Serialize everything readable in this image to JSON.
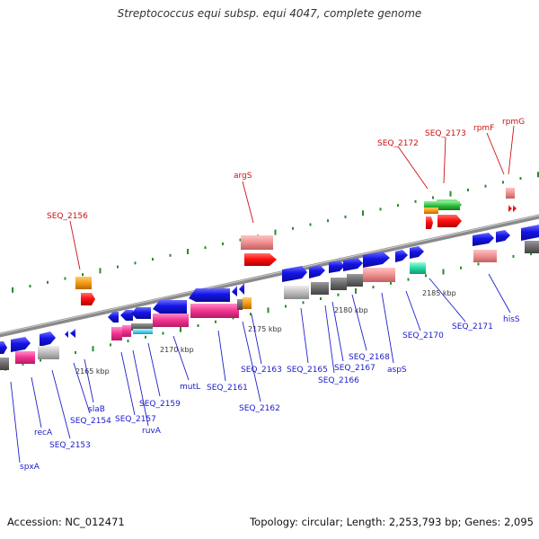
{
  "title": "Streptococcus equi subsp. equi 4047, complete genome",
  "footer": {
    "accession": "Accession: NC_012471",
    "summary": "Topology: circular; Length: 2,253,793 bp; Genes: 2,095"
  },
  "colors": {
    "backbone": "#8a8a8a",
    "forward_cds": "#1414e6",
    "reverse_cds": "#ff1111",
    "label_blue": "#1a1acc",
    "label_red": "#cc1111",
    "tick_dots": "#2a8a2a",
    "feature_pink": "#f0338f",
    "feature_salmon": "#ef8f8f",
    "feature_gray": "#bdbdbd",
    "feature_darkgray": "#6a6a6a",
    "feature_orange": "#f39a19",
    "feature_green": "#2ebd3a",
    "feature_teal": "#22d8a0"
  },
  "scale_ticks": [
    "2165 kbp",
    "2170 kbp",
    "2175 kbp",
    "2180 kbp",
    "2185 kbp"
  ],
  "gene_labels_bottom": [
    "spxA",
    "recA",
    "SEQ_2153",
    "SEQ_2154",
    "slaB",
    "SEQ_2157",
    "ruvA",
    "SEQ_2159",
    "mutL",
    "SEQ_2161",
    "SEQ_2162",
    "SEQ_2163",
    "SEQ_2165",
    "SEQ_2166",
    "SEQ_2167",
    "SEQ_2168",
    "aspS",
    "SEQ_2170",
    "SEQ_2171",
    "hisS"
  ],
  "gene_labels_top": [
    "SEQ_2156",
    "argS",
    "SEQ_2172",
    "SEQ_2173",
    "rpmF",
    "rpmG"
  ]
}
